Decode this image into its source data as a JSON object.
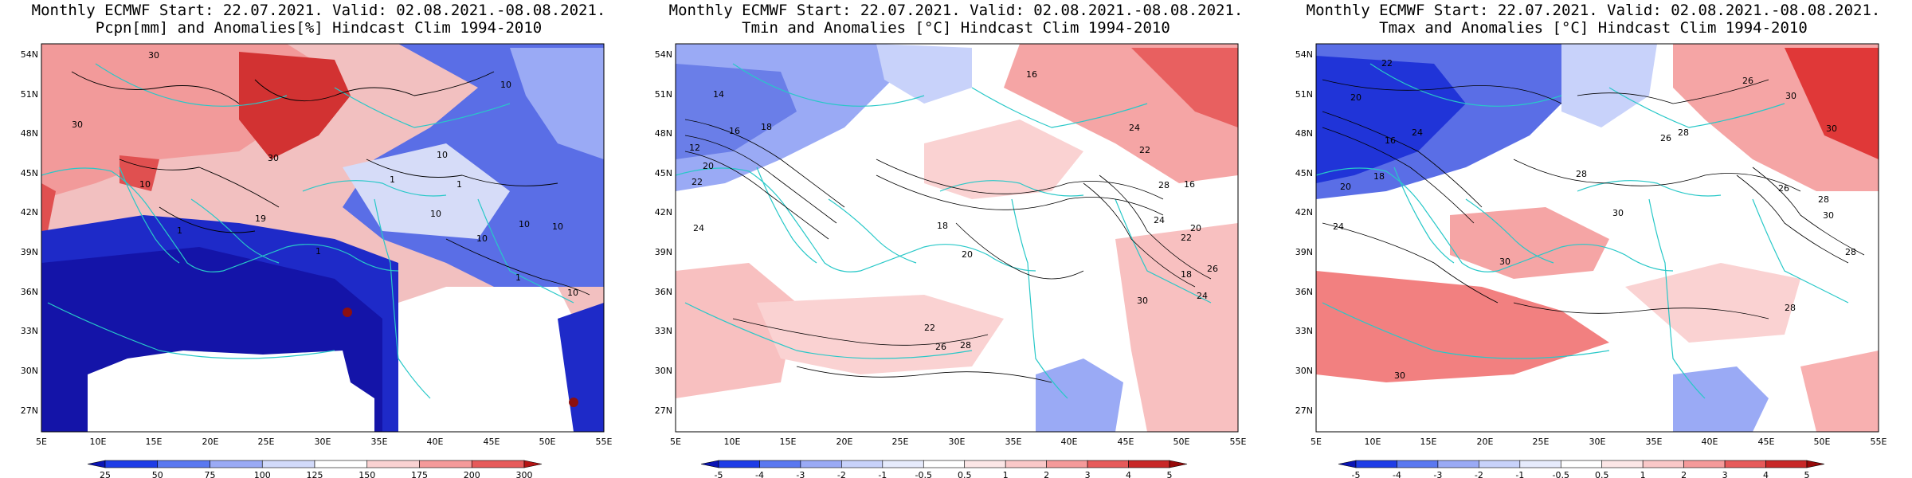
{
  "lat_labels": [
    "54N",
    "51N",
    "48N",
    "45N",
    "42N",
    "39N",
    "36N",
    "33N",
    "30N",
    "27N"
  ],
  "lon_labels": [
    "5E",
    "10E",
    "15E",
    "20E",
    "25E",
    "30E",
    "35E",
    "40E",
    "45E",
    "50E",
    "55E"
  ],
  "panels": [
    {
      "title_line1": "Monthly ECMWF Start: 22.07.2021. Valid: 02.08.2021.-08.08.2021.",
      "title_line2": "Pcpn[mm] and Anomalies[%] Hindcast Clim 1994-2010",
      "colorbar": {
        "labels": [
          "25",
          "50",
          "75",
          "100",
          "125",
          "150",
          "175",
          "200",
          "300"
        ],
        "colors": [
          "#0a14b4",
          "#1e3ce6",
          "#5a78f0",
          "#9aaaf5",
          "#d2dafa",
          "#ffffff",
          "#fad2d2",
          "#f59a9a",
          "#e65a5a",
          "#b41414"
        ]
      },
      "contour_labels": [
        "30",
        "10",
        "30",
        "10",
        "30",
        "1",
        "10",
        "1",
        "19",
        "10",
        "1",
        "10",
        "10",
        "10",
        "1",
        "10",
        "1"
      ],
      "colors": {
        "wet": "#1a1aa8",
        "dry": "#c81e1e"
      }
    },
    {
      "title_line1": "Monthly ECMWF Start: 22.07.2021. Valid: 02.08.2021.-08.08.2021.",
      "title_line2": "Tmin and Anomalies [°C] Hindcast Clim 1994-2010",
      "colorbar": {
        "labels": [
          "-5",
          "-4",
          "-3",
          "-2",
          "-1",
          "-0.5",
          "0.5",
          "1",
          "2",
          "3",
          "4",
          "5"
        ],
        "colors": [
          "#0a14b4",
          "#1e3ce6",
          "#5a78f0",
          "#9aaaf5",
          "#c8d2fa",
          "#e6ebfc",
          "#ffffff",
          "#fce6e6",
          "#fac8c8",
          "#f59a9a",
          "#e65a5a",
          "#c82828",
          "#960a0a"
        ]
      },
      "contour_labels": [
        "14",
        "16",
        "18",
        "20",
        "22",
        "24",
        "12",
        "16",
        "18",
        "20",
        "22",
        "24",
        "26",
        "28",
        "30",
        "16",
        "18",
        "20",
        "22",
        "24",
        "26",
        "28",
        "22",
        "24"
      ],
      "colors": {
        "cold": "#6470e0",
        "warm": "#f08080"
      }
    },
    {
      "title_line1": "Monthly ECMWF Start: 22.07.2021. Valid: 02.08.2021.-08.08.2021.",
      "title_line2": "Tmax and Anomalies [°C] Hindcast Clim 1994-2010",
      "colorbar": {
        "labels": [
          "-5",
          "-4",
          "-3",
          "-2",
          "-1",
          "-0.5",
          "0.5",
          "1",
          "2",
          "3",
          "4",
          "5"
        ],
        "colors": [
          "#0a14b4",
          "#1e3ce6",
          "#5a78f0",
          "#9aaaf5",
          "#c8d2fa",
          "#e6ebfc",
          "#ffffff",
          "#fce6e6",
          "#fac8c8",
          "#f59a9a",
          "#e65a5a",
          "#c82828",
          "#960a0a"
        ]
      },
      "contour_labels": [
        "22",
        "26",
        "30",
        "20",
        "24",
        "28",
        "30",
        "16",
        "18",
        "20",
        "24",
        "26",
        "28",
        "30",
        "26",
        "28",
        "30",
        "28",
        "30",
        "28",
        "30"
      ],
      "colors": {
        "cold": "#2030d0",
        "warm": "#e03030"
      }
    }
  ]
}
